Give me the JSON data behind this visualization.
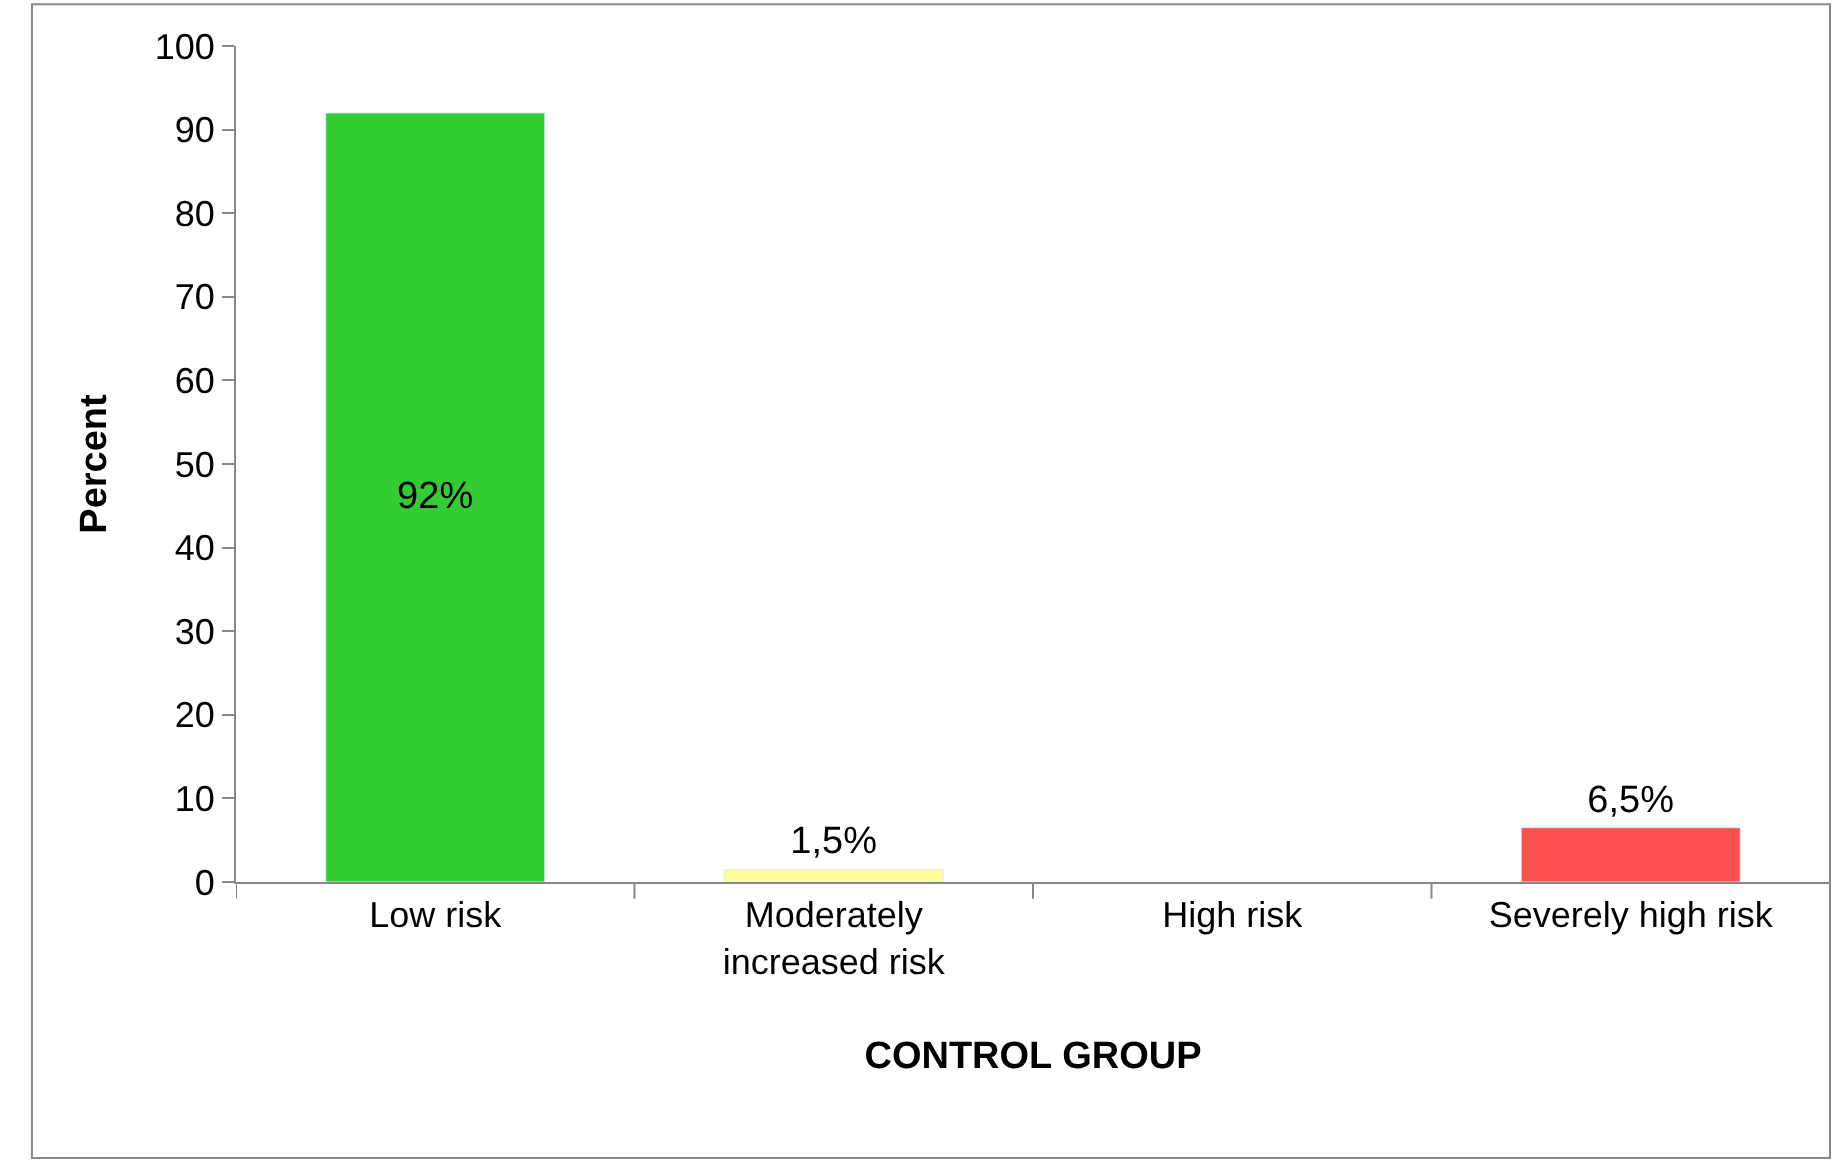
{
  "chart_data": {
    "type": "bar",
    "xlabel": "CONTROL GROUP",
    "ylabel": "Percent",
    "categories": [
      "Low risk",
      "Moderately increased risk",
      "High risk",
      "Severely high risk"
    ],
    "values": [
      92,
      1.5,
      null,
      6.5
    ],
    "colors": [
      "#33cc33",
      "#ffff99",
      null,
      "#ff5050"
    ],
    "value_labels": [
      "92%",
      "1,5%",
      null,
      "6,5%"
    ],
    "ylim": [
      0,
      100
    ],
    "yticks": [
      0,
      10,
      20,
      30,
      40,
      50,
      60,
      70,
      80,
      90,
      100
    ]
  }
}
